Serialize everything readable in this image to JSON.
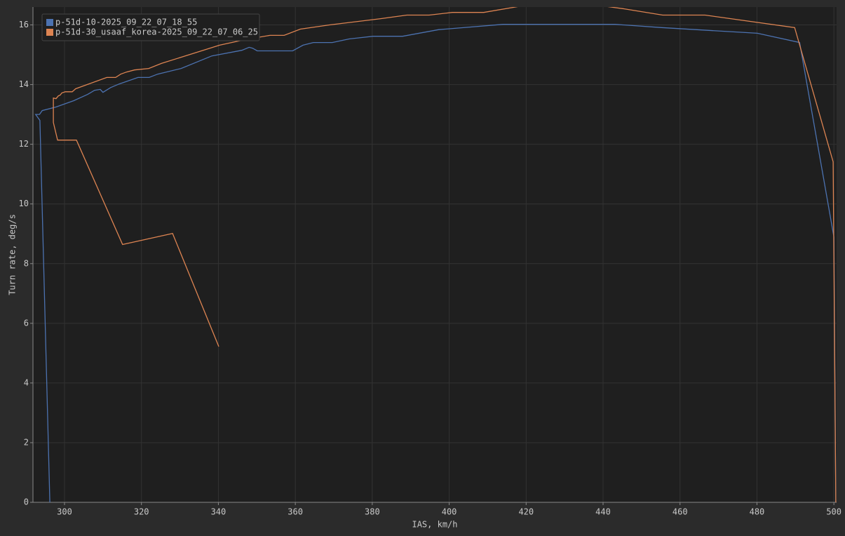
{
  "chart_data": {
    "type": "line",
    "x_label": "IAS, km/h",
    "y_label": "Turn rate, deg/s",
    "xlim": [
      291.8,
      500.7
    ],
    "ylim": [
      0,
      16.6
    ],
    "xticks": [
      300,
      320,
      340,
      360,
      380,
      400,
      420,
      440,
      460,
      480,
      500
    ],
    "yticks": [
      0,
      2,
      4,
      6,
      8,
      10,
      12,
      14,
      16
    ],
    "grid": true,
    "legend": "upper left",
    "series": [
      {
        "name": "p-51d-10-2025_09_22_07_18_55",
        "color": "#4c72b0",
        "x": [
          296.2,
          293.6,
          292.5,
          293.5,
          294.2,
          297.8,
          302.4,
          306,
          307.8,
          309.3,
          310,
          312,
          314.2,
          319.1,
          322,
          324.2,
          330.3,
          338.3,
          346.1,
          348,
          348.9,
          350.1,
          359.3,
          362,
          364.7,
          369.6,
          374,
          380.2,
          387.9,
          397.2,
          414,
          443.1,
          455.2,
          480.1,
          491.1,
          500,
          500.5
        ],
        "values": [
          0,
          12.8,
          13.0,
          13.0,
          13.13,
          13.25,
          13.46,
          13.67,
          13.81,
          13.84,
          13.74,
          13.9,
          14.02,
          14.24,
          14.24,
          14.35,
          14.54,
          14.96,
          15.15,
          15.25,
          15.22,
          15.13,
          15.13,
          15.32,
          15.41,
          15.41,
          15.53,
          15.62,
          15.62,
          15.84,
          16.02,
          16.02,
          15.91,
          15.72,
          15.41,
          8.89,
          0
        ]
      },
      {
        "name": "p-51d-30_usaaf_korea-2025_09_22_07_06_25",
        "color": "#dd8452",
        "x": [
          340.1,
          328.1,
          315.1,
          303.1,
          298.2,
          297.1,
          297.1,
          297.8,
          298.4,
          298.9,
          299.3,
          300.2,
          302,
          302.9,
          311,
          313.3,
          314.6,
          316.1,
          318.2,
          321.9,
          325.2,
          340.3,
          347,
          353.4,
          357.1,
          361.3,
          368.9,
          382.2,
          389,
          394.8,
          400.8,
          409,
          419,
          434.6,
          445.5,
          455.5,
          466.5,
          489.8,
          499.8,
          500.5
        ],
        "values": [
          5.22,
          9.01,
          8.64,
          12.14,
          12.14,
          12.73,
          13.55,
          13.53,
          13.62,
          13.65,
          13.72,
          13.76,
          13.76,
          13.86,
          14.24,
          14.24,
          14.35,
          14.42,
          14.49,
          14.54,
          14.71,
          15.32,
          15.51,
          15.65,
          15.65,
          15.86,
          16.0,
          16.21,
          16.33,
          16.33,
          16.42,
          16.42,
          16.64,
          16.73,
          16.54,
          16.33,
          16.33,
          15.91,
          11.41,
          0
        ]
      }
    ]
  }
}
